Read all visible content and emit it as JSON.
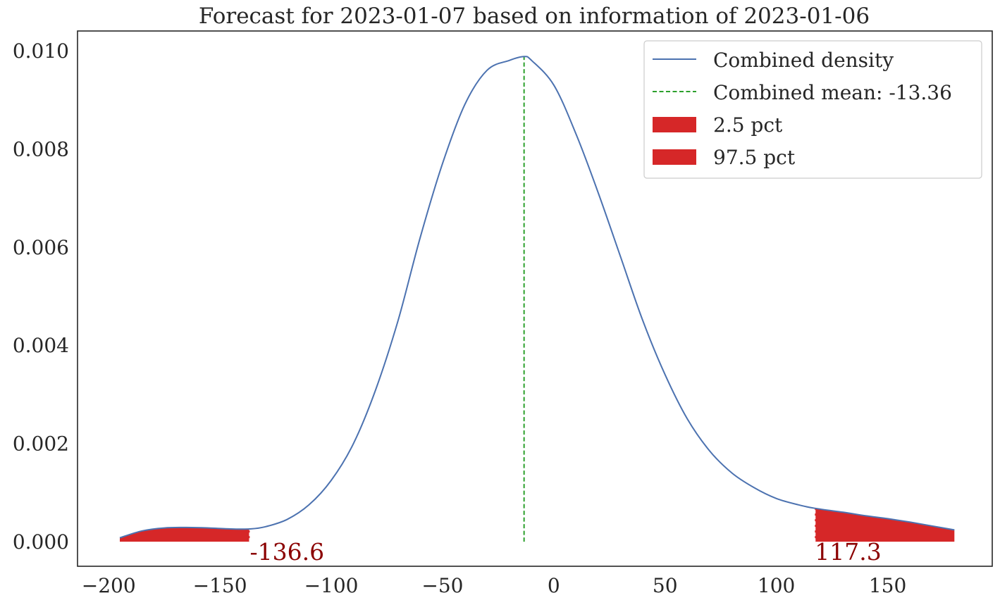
{
  "chart_data": {
    "type": "line",
    "title": "Forecast for 2023-01-07 based on information of 2023-01-06",
    "xlabel": "",
    "ylabel": "",
    "xlim": [
      -214,
      197
    ],
    "ylim": [
      -0.0005,
      0.0104
    ],
    "x_ticks": [
      -200,
      -150,
      -100,
      -50,
      0,
      50,
      100,
      150
    ],
    "x_tick_labels": [
      "−200",
      "−150",
      "−100",
      "−50",
      "0",
      "50",
      "100",
      "150"
    ],
    "y_ticks": [
      0.0,
      0.002,
      0.004,
      0.006,
      0.008,
      0.01
    ],
    "y_tick_labels": [
      "0.000",
      "0.002",
      "0.004",
      "0.006",
      "0.008",
      "0.010"
    ],
    "grid": false,
    "legend_position": "top-right",
    "series": [
      {
        "name": "Combined density",
        "color": "#4c72b0",
        "x": [
          -195,
          -185,
          -175,
          -165,
          -155,
          -145,
          -136.6,
          -130,
          -120,
          -110,
          -100,
          -90,
          -80,
          -70,
          -60,
          -50,
          -40,
          -30,
          -20,
          -13.36,
          -10,
          0,
          10,
          20,
          30,
          40,
          50,
          60,
          70,
          80,
          90,
          100,
          110,
          117.3,
          130,
          140,
          150,
          160,
          170,
          180
        ],
        "y": [
          8e-05,
          0.00022,
          0.00028,
          0.00029,
          0.00028,
          0.00026,
          0.00026,
          0.0003,
          0.00045,
          0.00075,
          0.00125,
          0.002,
          0.0031,
          0.0045,
          0.0062,
          0.0077,
          0.0089,
          0.0096,
          0.0098,
          0.00988,
          0.0098,
          0.0093,
          0.0083,
          0.0071,
          0.0058,
          0.0045,
          0.0034,
          0.0025,
          0.00185,
          0.0014,
          0.0011,
          0.00088,
          0.00075,
          0.00068,
          0.0006,
          0.00053,
          0.00047,
          0.0004,
          0.00032,
          0.00024
        ]
      }
    ],
    "mean_line": {
      "name": "Combined mean: -13.36",
      "x": -13.36,
      "y_top": 0.00988,
      "color": "#2ca02c"
    },
    "fill_low": {
      "name": "2.5 pct",
      "x_max": -136.6,
      "color": "#d62728"
    },
    "fill_high": {
      "name": "97.5 pct",
      "x_min": 117.3,
      "color": "#d62728"
    },
    "annotations": [
      {
        "text": "-136.6",
        "x": -136.6,
        "color": "#8b0000"
      },
      {
        "text": "117.3",
        "x": 117.3,
        "color": "#8b0000"
      }
    ]
  }
}
